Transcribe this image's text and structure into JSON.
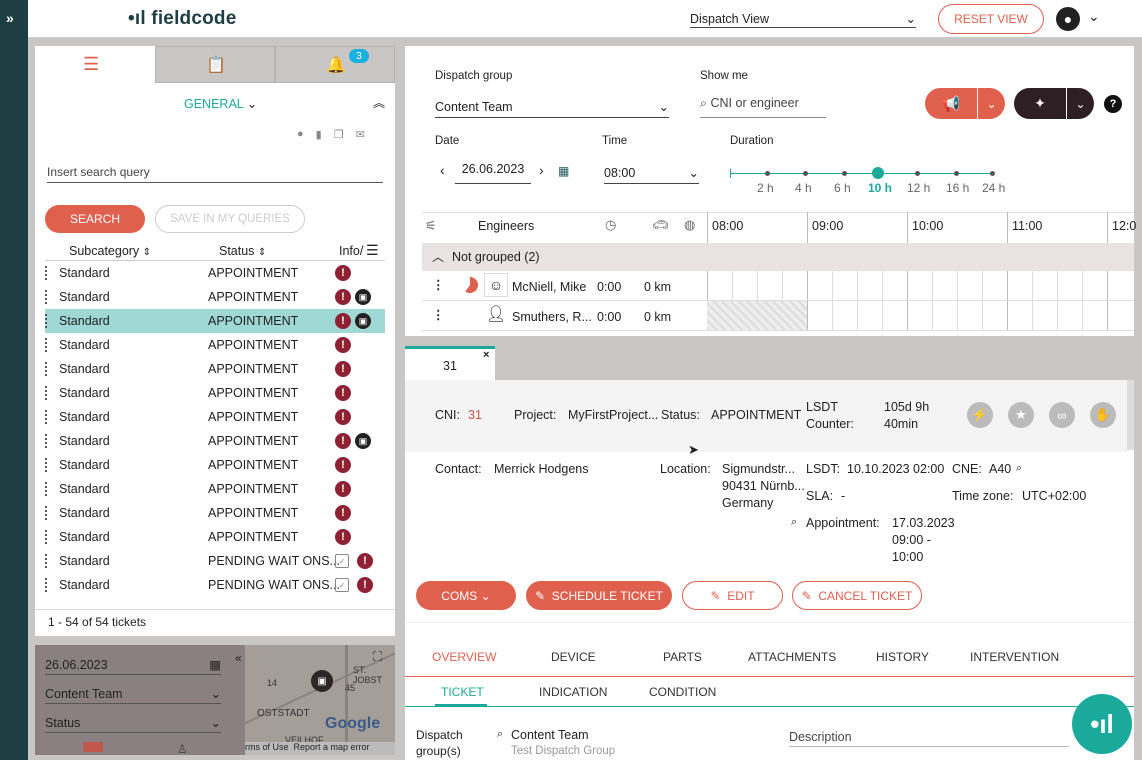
{
  "app": {
    "logo": "fieldcode",
    "view": "Dispatch View",
    "reset": "RESET VIEW"
  },
  "left": {
    "badge": "3",
    "general": "GENERAL",
    "search_placeholder": "Insert search query",
    "search_btn": "SEARCH",
    "save_btn": "SAVE IN MY QUERIES",
    "cols": {
      "subcategory": "Subcategory",
      "status": "Status",
      "info": "Info/"
    },
    "rows": [
      {
        "sub": "Standard",
        "status": "APPOINTMENT",
        "pc": false,
        "cal": false
      },
      {
        "sub": "Standard",
        "status": "APPOINTMENT",
        "pc": true,
        "cal": false
      },
      {
        "sub": "Standard",
        "status": "APPOINTMENT",
        "pc": true,
        "cal": false
      },
      {
        "sub": "Standard",
        "status": "APPOINTMENT",
        "pc": false,
        "cal": false
      },
      {
        "sub": "Standard",
        "status": "APPOINTMENT",
        "pc": false,
        "cal": false
      },
      {
        "sub": "Standard",
        "status": "APPOINTMENT",
        "pc": false,
        "cal": false
      },
      {
        "sub": "Standard",
        "status": "APPOINTMENT",
        "pc": false,
        "cal": false
      },
      {
        "sub": "Standard",
        "status": "APPOINTMENT",
        "pc": true,
        "cal": false
      },
      {
        "sub": "Standard",
        "status": "APPOINTMENT",
        "pc": false,
        "cal": false
      },
      {
        "sub": "Standard",
        "status": "APPOINTMENT",
        "pc": false,
        "cal": false
      },
      {
        "sub": "Standard",
        "status": "APPOINTMENT",
        "pc": false,
        "cal": false
      },
      {
        "sub": "Standard",
        "status": "APPOINTMENT",
        "pc": false,
        "cal": false
      },
      {
        "sub": "Standard",
        "status": "PENDING WAIT ONS...",
        "pc": false,
        "cal": true
      },
      {
        "sub": "Standard",
        "status": "PENDING WAIT ONS...",
        "pc": false,
        "cal": true
      }
    ],
    "footer": "1 - 54 of 54 tickets",
    "mini": {
      "date": "26.06.2023",
      "group": "Content Team",
      "status": "Status",
      "map_st": "ST. JOBST",
      "map_ost": "OSTSTADT",
      "map_veil": "VEILHOF",
      "map_terms": "rms of Use",
      "map_report": "Report a map error",
      "map_google": "Google",
      "map_num1": "14",
      "map_num2": "45"
    }
  },
  "sched": {
    "group_label": "Dispatch group",
    "group_val": "Content Team",
    "show_label": "Show me",
    "show_ph": "CNI or engineer",
    "date_label": "Date",
    "date_val": "26.06.2023",
    "time_label": "Time",
    "time_val": "08:00",
    "duration_label": "Duration",
    "durations": [
      "2 h",
      "4 h",
      "6 h",
      "10 h",
      "12 h",
      "16 h",
      "24 h"
    ],
    "engineers": "Engineers",
    "hours": [
      "08:00",
      "09:00",
      "10:00",
      "11:00",
      "12:0"
    ],
    "group_row": "Not grouped (2)",
    "eng": [
      {
        "name": "McNiell, Mike",
        "t": "0:00",
        "d": "0 km"
      },
      {
        "name": "Smuthers, R...",
        "t": "0:00",
        "d": "0 km"
      }
    ]
  },
  "detail": {
    "tab": "31",
    "cni_l": "CNI:",
    "cni": "31",
    "proj_l": "Project:",
    "proj": "MyFirstProject...",
    "status_l": "Status:",
    "status": "APPOINTMENT",
    "lsdt_c_l1": "LSDT",
    "lsdt_c_l2": "Counter:",
    "lsdt_c1": "105d 9h",
    "lsdt_c2": "40min",
    "contact_l": "Contact:",
    "contact": "Merrick Hodgens",
    "loc_l": "Location:",
    "loc1": "Sigmundstr...",
    "loc2": "90431 Nürnb...",
    "loc3": "Germany",
    "lsdt_l": "LSDT:",
    "lsdt": "10.10.2023 02:00",
    "cne_l": "CNE:",
    "cne": "A40",
    "sla_l": "SLA:",
    "sla": "-",
    "tz_l": "Time zone:",
    "tz": "UTC+02:00",
    "appt_l": "Appointment:",
    "appt1": "17.03.2023",
    "appt2": "09:00 -",
    "appt3": "10:00",
    "coms": "COMS",
    "schedule": "SCHEDULE TICKET",
    "edit": "EDIT",
    "cancel": "CANCEL TICKET",
    "tabs": [
      "OVERVIEW",
      "DEVICE",
      "PARTS",
      "ATTACHMENTS",
      "HISTORY",
      "INTERVENTION"
    ],
    "subtabs": [
      "TICKET",
      "INDICATION",
      "CONDITION"
    ],
    "dg_l1": "Dispatch",
    "dg_l2": "group(s)",
    "dg": "Content Team",
    "dg2": "Test Dispatch Group",
    "desc_l": "Description"
  },
  "colors": {
    "accent": "#e0604e",
    "teal": "#1aa99a",
    "dark": "#2d1f24"
  }
}
